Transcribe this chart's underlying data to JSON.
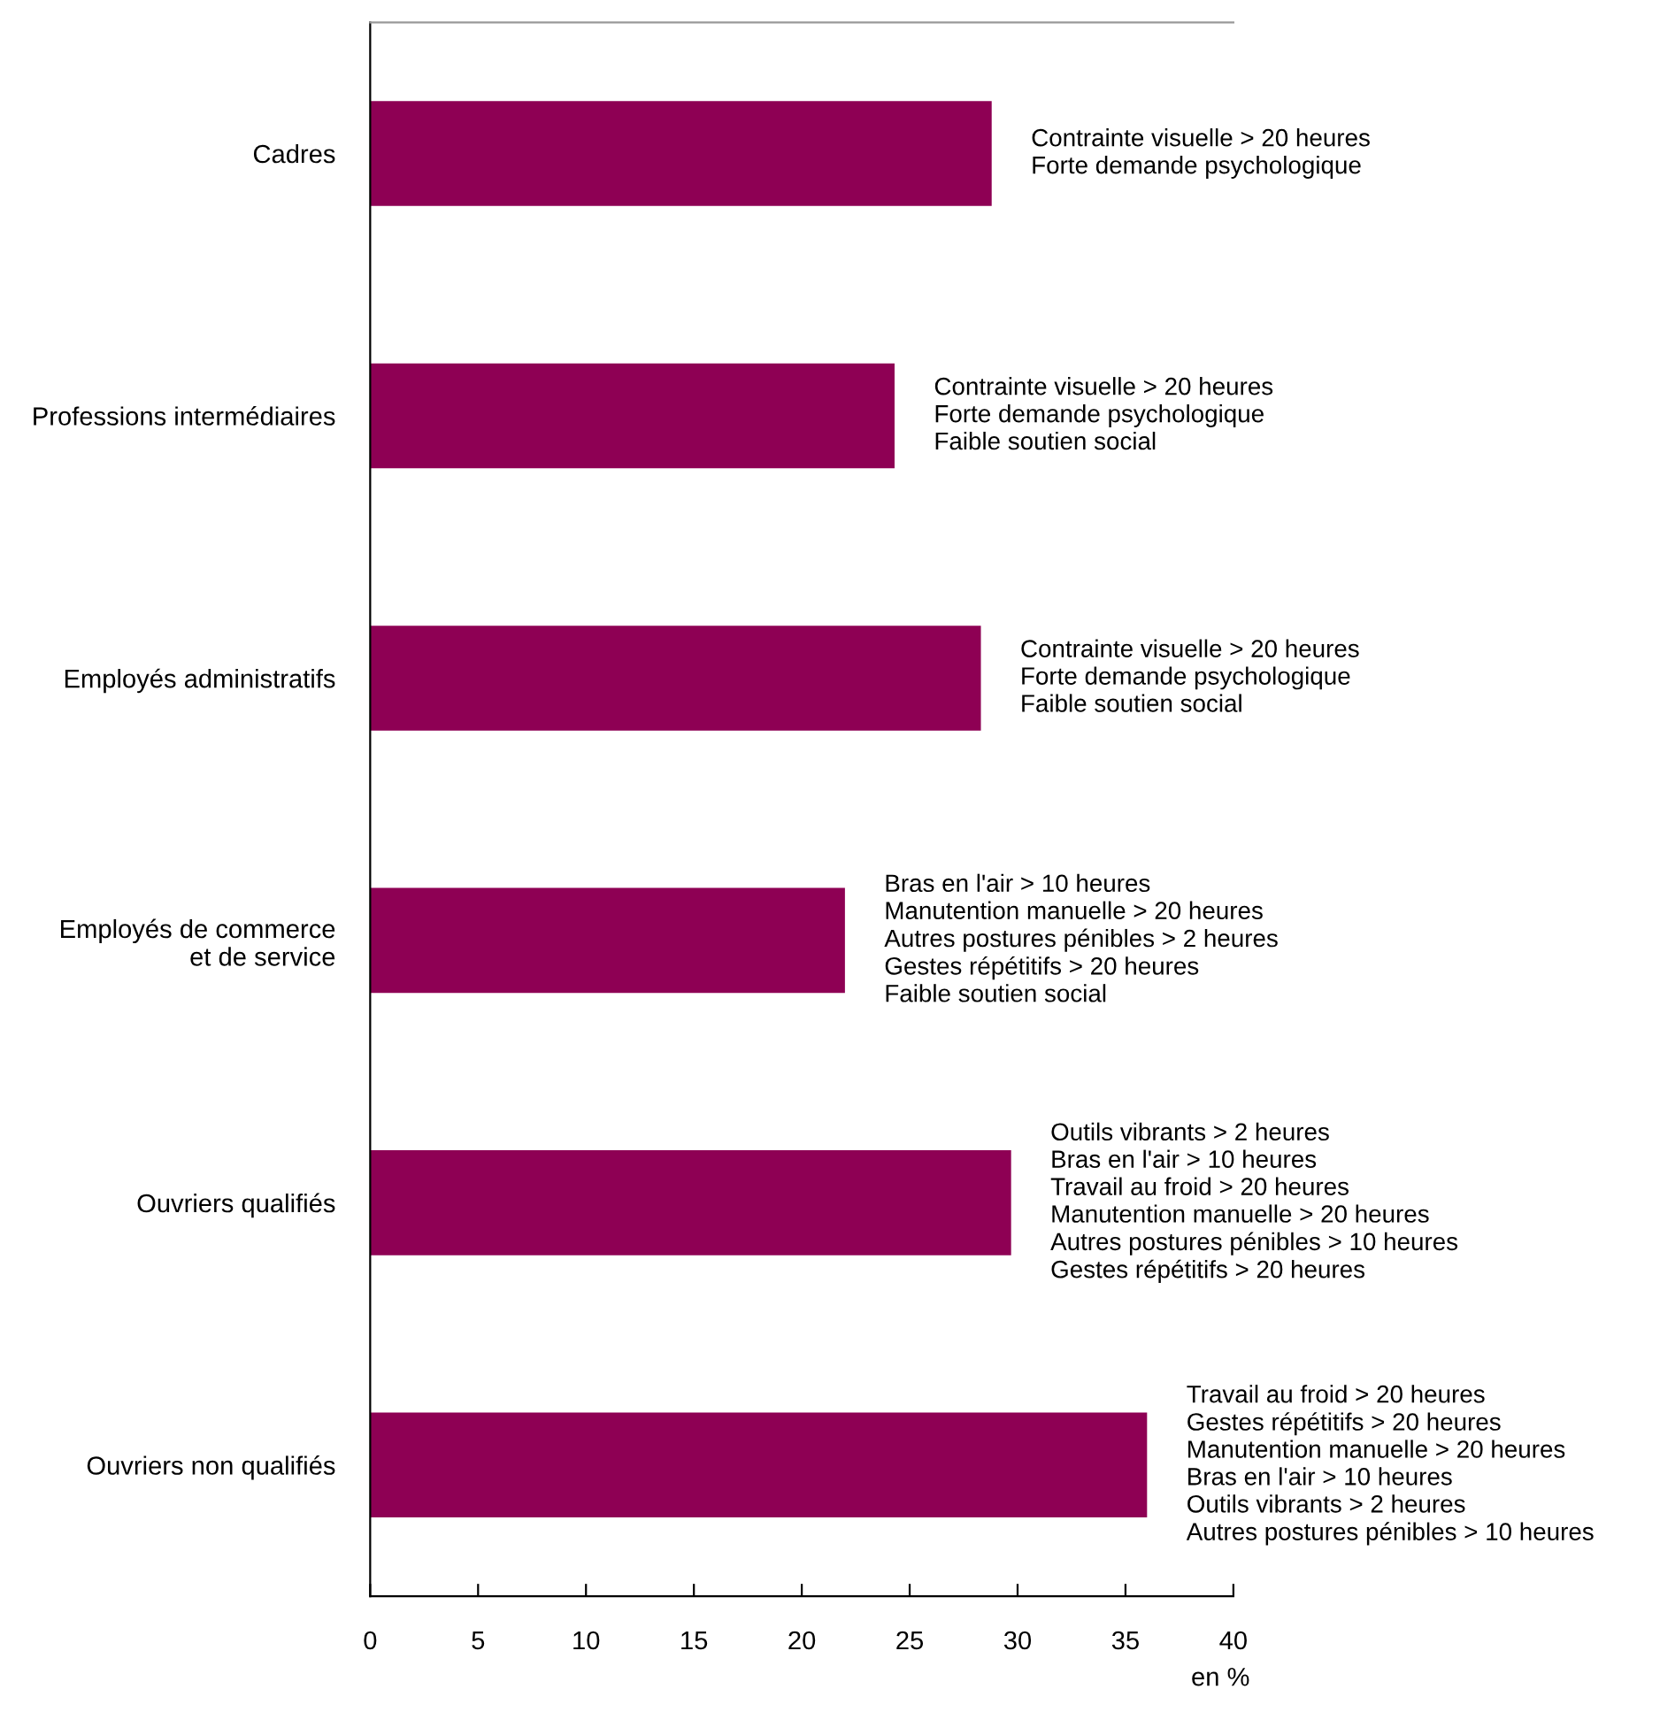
{
  "chart_data": {
    "type": "bar",
    "orientation": "horizontal",
    "categories": [
      "Cadres",
      "Professions intermédiaires",
      "Employés administratifs",
      "Employés de commerce\net de service",
      "Ouvriers qualifiés",
      "Ouvriers non qualifiés"
    ],
    "values": [
      28.8,
      24.3,
      28.3,
      22.0,
      29.7,
      36.0
    ],
    "color": "#8e0054",
    "xlim": [
      0,
      40
    ],
    "xticks": [
      0,
      5,
      10,
      15,
      20,
      25,
      30,
      35,
      40
    ],
    "xlabel": "en %",
    "grid": false,
    "annotations": [
      {
        "text": "Contrainte visuelle > 20 heures\nForte demande psychologique",
        "x": 28.8,
        "y": "Cadres"
      },
      {
        "text": "Contrainte visuelle > 20 heures\nForte demande psychologique\nFaible soutien social",
        "x": 24.3,
        "y": "Professions intermédiaires"
      },
      {
        "text": "Contrainte visuelle > 20 heures\nForte demande psychologique\nFaible soutien social",
        "x": 28.3,
        "y": "Employés administratifs"
      },
      {
        "text": "Bras en l'air > 10 heures\nManutention manuelle > 20 heures\nAutres postures pénibles > 2 heures\nGestes répétitifs > 20 heures\nFaible soutien social",
        "x": 22.0,
        "y": "Employés de commerce\net de service"
      },
      {
        "text": "Outils vibrants > 2 heures\nBras en l'air > 10 heures\nTravail au froid > 20 heures\nManutention manuelle > 20 heures\nAutres postures pénibles > 10 heures\nGestes répétitifs > 20 heures",
        "x": 29.7,
        "y": "Ouvriers qualifiés"
      },
      {
        "text": "Travail au froid > 20 heures\nGestes répétitifs > 20 heures\nManutention manuelle > 20 heures\nBras en l'air > 10 heures\nOutils vibrants > 2 heures\nAutres postures pénibles > 10 heures",
        "x": 36.0,
        "y": "Ouvriers non qualifiés"
      }
    ]
  }
}
